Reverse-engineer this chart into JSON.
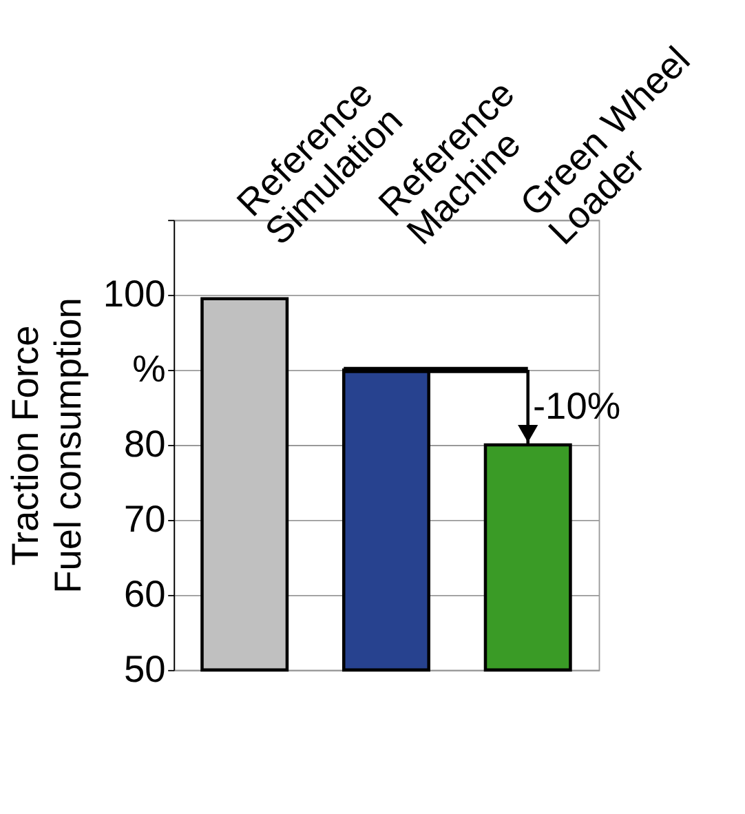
{
  "chart_data": {
    "type": "bar",
    "ylabel": "Traction Force\nFuel consumption",
    "categories": [
      "Reference\nSimulation",
      "Reference\nMachine",
      "Green Wheel\nLoader"
    ],
    "values": [
      99.5,
      90,
      80
    ],
    "colors": [
      "#c0c0c0",
      "#27428f",
      "#3a9b26"
    ],
    "ylim": [
      50,
      110
    ],
    "yticks": [
      50,
      60,
      70,
      80,
      {
        "value": 90,
        "label": "%"
      },
      100,
      {
        "value": 110,
        "label": null
      }
    ],
    "grid": "y",
    "annotations": [
      "-10%"
    ]
  }
}
